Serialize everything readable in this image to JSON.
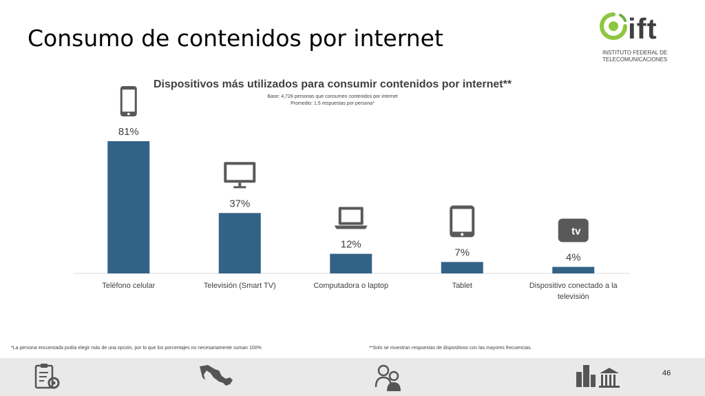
{
  "page": {
    "title": "Consumo de contenidos por internet",
    "page_number": "46"
  },
  "logo": {
    "word": "ift",
    "line1": "INSTITUTO FEDERAL DE",
    "line2": "TELECOMUNICACIONES",
    "brand_green": "#8dc63f",
    "brand_gray": "#404040"
  },
  "chart_data": {
    "type": "bar",
    "title": "Dispositivos más utilizados para consumir contenidos por internet**",
    "subtitle_lines": [
      "Base: 4,728 personas que consumen contenidos por internet",
      "Promedio: 1.5 respuestas por persona*"
    ],
    "categories": [
      [
        "Teléfono celular"
      ],
      [
        "Televisión (Smart TV)"
      ],
      [
        "Computadora o laptop"
      ],
      [
        "Tablet"
      ],
      [
        "Dispositivo conectado a la",
        "televisión"
      ]
    ],
    "values": [
      81,
      37,
      12,
      7,
      4
    ],
    "data_labels": [
      "81%",
      "37%",
      "12%",
      "7%",
      "4%"
    ],
    "icons": [
      "smartphone-icon",
      "tv-icon",
      "laptop-icon",
      "tablet-icon",
      "streaming-box-icon"
    ],
    "streaming_icon_text": "tv",
    "ylim": [
      0,
      100
    ],
    "bar_color": "#336287",
    "grid": false,
    "legend": "none"
  },
  "footnotes": {
    "left": "*La persona encuestada podía elegir más de una opción, por lo que los porcentajes no necesariamente suman 100%",
    "right": "**Solo se muestran respuestas de dispositivos con las mayores frecuencias."
  },
  "footer": {
    "icons": [
      "clipboard-gear-icon",
      "mexico-map-icon",
      "people-icon",
      "buildings-icon"
    ]
  }
}
